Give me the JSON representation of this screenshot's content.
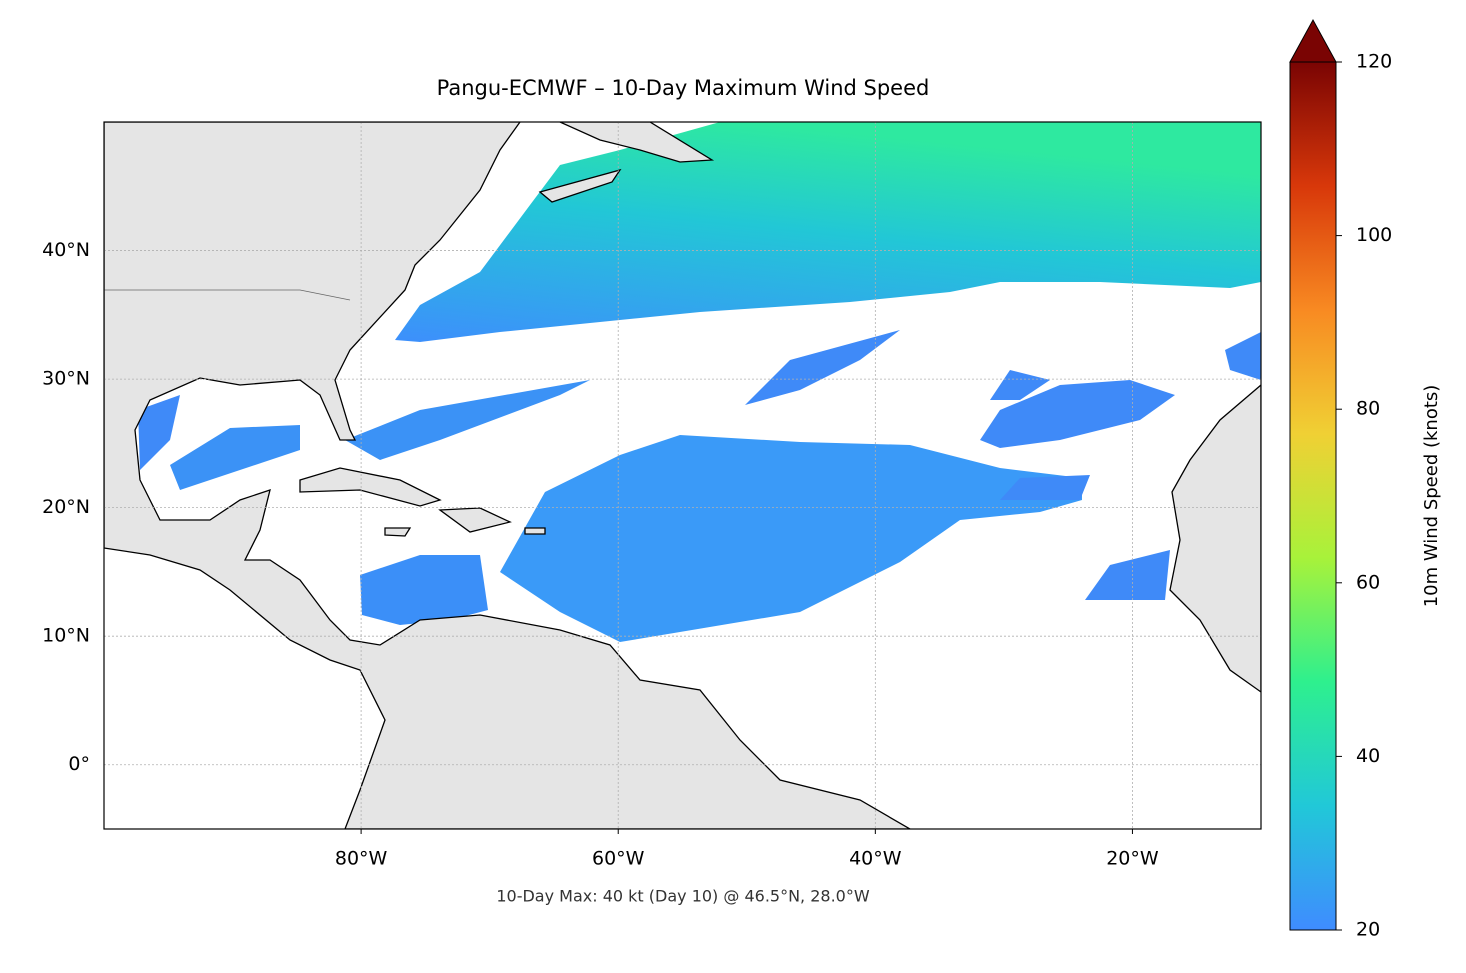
{
  "chart_data": {
    "type": "map",
    "title": "Pangu-ECMWF – 10-Day Maximum Wind Speed",
    "annotation": "10-Day Max: 40 kt (Day 10) @ 46.5°N, 28.0°W",
    "xlim": [
      -100,
      -10
    ],
    "ylim": [
      -5,
      50
    ],
    "xticks": [
      {
        "value": -80,
        "label": "80°W"
      },
      {
        "value": -60,
        "label": "60°W"
      },
      {
        "value": -40,
        "label": "40°W"
      },
      {
        "value": -20,
        "label": "20°W"
      }
    ],
    "yticks": [
      {
        "value": 0,
        "label": "0°"
      },
      {
        "value": 10,
        "label": "10°N"
      },
      {
        "value": 20,
        "label": "20°N"
      },
      {
        "value": 30,
        "label": "30°N"
      },
      {
        "value": 40,
        "label": "40°N"
      }
    ],
    "grid": true,
    "colorbar": {
      "label": "10m Wind Speed (knots)",
      "lim": [
        20,
        120
      ],
      "ticks": [
        20,
        40,
        60,
        80,
        100,
        120
      ],
      "colors": [
        "#3f8cff",
        "#21c8d8",
        "#2ef08e",
        "#a8f23a",
        "#f0d034",
        "#f88a22",
        "#d8380a",
        "#7a0403"
      ]
    }
  }
}
